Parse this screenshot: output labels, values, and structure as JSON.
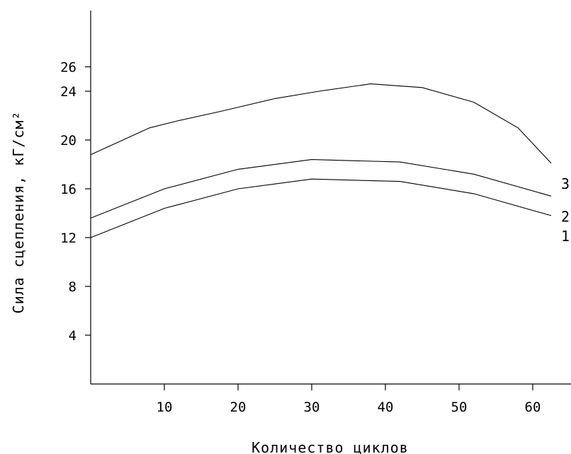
{
  "chart_data": {
    "type": "line",
    "xlabel": "Количество циклов",
    "ylabel": "Сила сцепления, кГ/см²",
    "xlim": [
      0,
      65
    ],
    "ylim": [
      0,
      28
    ],
    "x_ticks": [
      10,
      20,
      30,
      40,
      50,
      60
    ],
    "y_ticks": [
      4,
      8,
      12,
      16,
      20,
      24,
      26
    ],
    "grid": false,
    "legend": "none",
    "series": [
      {
        "name": "1",
        "x": [
          0,
          10,
          20,
          30,
          42,
          52,
          62.5
        ],
        "y": [
          12.0,
          14.4,
          16.0,
          16.8,
          16.6,
          15.6,
          13.8
        ]
      },
      {
        "name": "2",
        "x": [
          0,
          10,
          20,
          30,
          42,
          52,
          62.5
        ],
        "y": [
          13.6,
          16.0,
          17.6,
          18.4,
          18.2,
          17.2,
          15.4
        ]
      },
      {
        "name": "3",
        "x": [
          0,
          4,
          8,
          12,
          18,
          25,
          31,
          38,
          45,
          52,
          58,
          62.5
        ],
        "y": [
          18.8,
          19.9,
          21.0,
          21.6,
          22.4,
          23.4,
          24.0,
          24.6,
          24.3,
          23.1,
          21.0,
          18.1
        ]
      }
    ]
  }
}
